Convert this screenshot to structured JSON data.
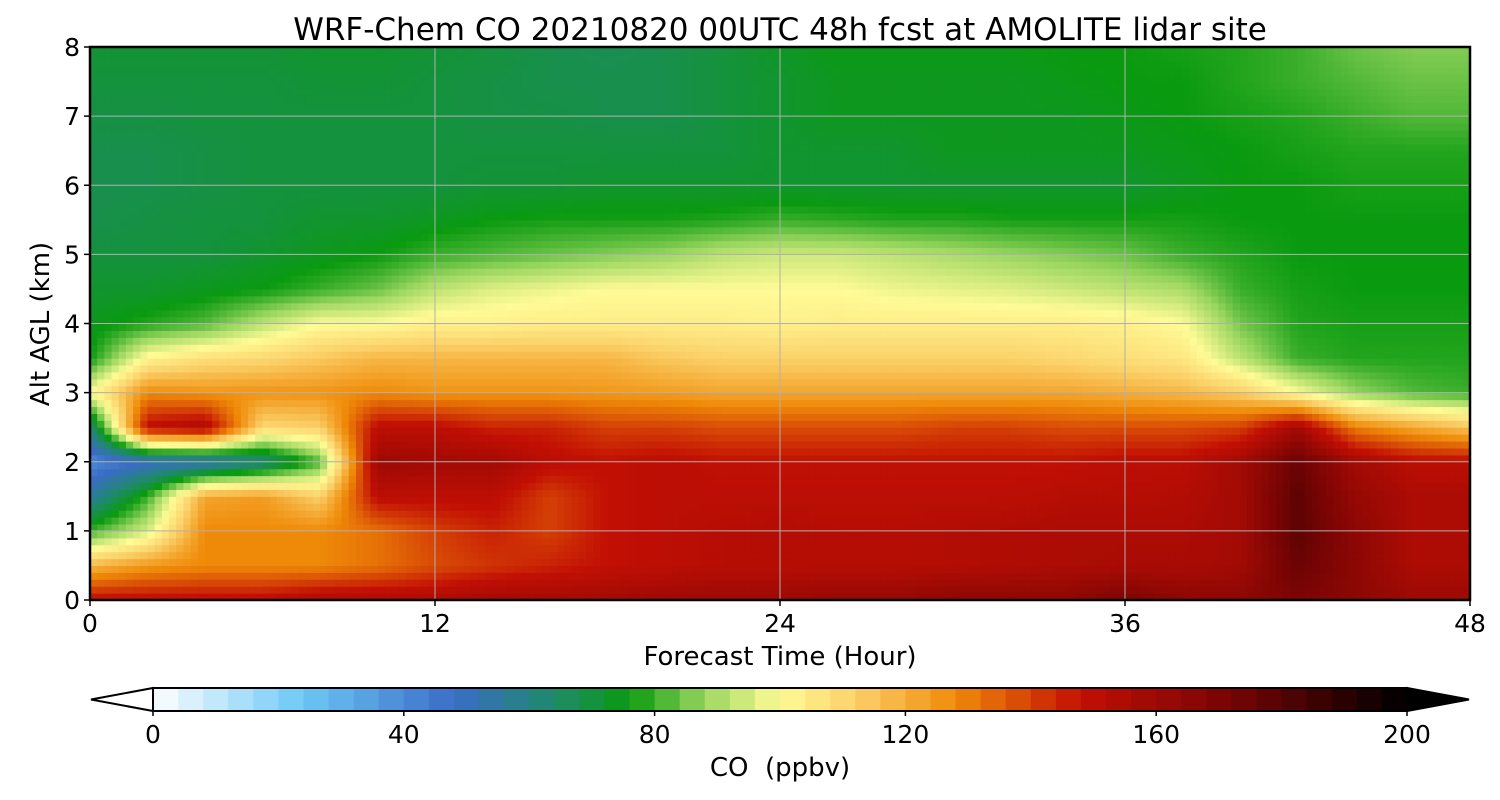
{
  "chart_data": {
    "type": "heatmap",
    "title": "WRF-Chem CO  20210820 00UTC 48h fcst at AMOLITE lidar site",
    "xlabel": "Forecast Time (Hour)",
    "ylabel": "Alt AGL (km)",
    "xlim": [
      0,
      48
    ],
    "ylim": [
      0,
      8
    ],
    "x_ticks": [
      "0",
      "12",
      "24",
      "36",
      "48"
    ],
    "y_ticks": [
      "0",
      "1",
      "2",
      "3",
      "4",
      "5",
      "6",
      "7",
      "8"
    ],
    "grid": true,
    "colorbar": {
      "label": "CO  (ppbv)",
      "range": [
        0,
        200
      ],
      "ticks": [
        "0",
        "40",
        "80",
        "120",
        "160",
        "200"
      ],
      "extend": "both",
      "stops": [
        {
          "value": 0,
          "color": "#ffffff"
        },
        {
          "value": 24,
          "color": "#6cc8f5"
        },
        {
          "value": 48,
          "color": "#3a6cc6"
        },
        {
          "value": 64,
          "color": "#1f8a6a"
        },
        {
          "value": 76,
          "color": "#0a9a10"
        },
        {
          "value": 88,
          "color": "#9ad660"
        },
        {
          "value": 100,
          "color": "#fffb96"
        },
        {
          "value": 112,
          "color": "#fbd16a"
        },
        {
          "value": 128,
          "color": "#ef8a08"
        },
        {
          "value": 148,
          "color": "#c20f04"
        },
        {
          "value": 172,
          "color": "#760404"
        },
        {
          "value": 200,
          "color": "#000000"
        }
      ]
    },
    "time_hours": [
      0,
      2,
      4,
      6,
      8,
      10,
      12,
      14,
      16,
      18,
      20,
      22,
      24,
      26,
      28,
      30,
      32,
      34,
      36,
      38,
      40,
      42,
      44,
      46,
      48
    ],
    "altitude_km": [
      0,
      0.5,
      1,
      1.5,
      2,
      2.5,
      3,
      3.5,
      4,
      4.5,
      5,
      5.5,
      6,
      6.5,
      7,
      7.5,
      8
    ],
    "co_ppbv": [
      [
        150,
        150,
        150,
        150,
        155,
        155,
        155,
        158,
        158,
        158,
        160,
        160,
        160,
        162,
        162,
        165,
        165,
        165,
        170,
        165,
        165,
        170,
        165,
        160,
        160
      ],
      [
        118,
        125,
        128,
        128,
        128,
        132,
        138,
        142,
        145,
        148,
        150,
        152,
        152,
        152,
        152,
        153,
        154,
        155,
        156,
        156,
        158,
        175,
        165,
        155,
        155
      ],
      [
        80,
        95,
        128,
        128,
        128,
        132,
        140,
        145,
        140,
        148,
        150,
        152,
        153,
        152,
        152,
        153,
        154,
        155,
        155,
        155,
        158,
        178,
        165,
        155,
        155
      ],
      [
        55,
        80,
        122,
        124,
        112,
        150,
        150,
        150,
        140,
        148,
        150,
        150,
        150,
        150,
        150,
        150,
        150,
        152,
        152,
        153,
        158,
        178,
        162,
        155,
        155
      ],
      [
        40,
        48,
        50,
        60,
        82,
        160,
        158,
        158,
        150,
        148,
        150,
        148,
        148,
        148,
        148,
        148,
        148,
        148,
        150,
        150,
        158,
        175,
        158,
        150,
        150
      ],
      [
        60,
        150,
        155,
        110,
        112,
        150,
        150,
        145,
        145,
        140,
        140,
        138,
        138,
        138,
        138,
        140,
        140,
        138,
        138,
        138,
        140,
        158,
        130,
        122,
        115
      ],
      [
        100,
        128,
        126,
        126,
        126,
        128,
        126,
        126,
        126,
        125,
        124,
        122,
        122,
        122,
        122,
        122,
        122,
        122,
        120,
        118,
        113,
        100,
        88,
        82,
        80
      ],
      [
        76,
        102,
        108,
        110,
        114,
        118,
        118,
        118,
        118,
        118,
        114,
        112,
        112,
        112,
        112,
        112,
        112,
        110,
        108,
        106,
        92,
        80,
        78,
        78,
        78
      ],
      [
        74,
        78,
        82,
        92,
        100,
        100,
        103,
        103,
        104,
        104,
        104,
        104,
        103,
        104,
        104,
        104,
        104,
        104,
        103,
        100,
        85,
        78,
        77,
        77,
        77
      ],
      [
        72,
        72,
        74,
        76,
        80,
        84,
        92,
        96,
        98,
        100,
        100,
        100,
        100,
        100,
        98,
        97,
        96,
        94,
        92,
        90,
        80,
        77,
        76,
        76,
        76
      ],
      [
        70,
        70,
        70,
        72,
        74,
        76,
        80,
        82,
        84,
        86,
        88,
        92,
        94,
        94,
        92,
        90,
        88,
        86,
        84,
        80,
        78,
        76,
        76,
        76,
        76
      ],
      [
        68,
        69,
        70,
        70,
        72,
        72,
        74,
        76,
        77,
        77,
        77,
        78,
        80,
        79,
        78,
        78,
        77,
        77,
        77,
        77,
        76,
        76,
        76,
        76,
        76
      ],
      [
        68,
        68,
        69,
        70,
        70,
        70,
        70,
        71,
        71,
        72,
        72,
        72,
        72,
        72,
        72,
        72,
        72,
        72,
        72,
        74,
        76,
        76,
        77,
        77,
        77
      ],
      [
        68,
        68,
        69,
        70,
        70,
        70,
        70,
        70,
        70,
        70,
        70,
        70,
        72,
        72,
        72,
        74,
        74,
        74,
        74,
        75,
        76,
        77,
        78,
        78,
        78
      ],
      [
        69,
        69,
        70,
        70,
        70,
        70,
        70,
        69,
        69,
        68,
        68,
        70,
        72,
        74,
        74,
        74,
        74,
        74,
        75,
        76,
        77,
        78,
        80,
        82,
        82
      ],
      [
        70,
        70,
        70,
        70,
        71,
        71,
        70,
        69,
        68,
        68,
        68,
        70,
        72,
        74,
        74,
        74,
        74,
        75,
        76,
        76,
        78,
        80,
        82,
        84,
        84
      ],
      [
        71,
        71,
        71,
        71,
        72,
        72,
        71,
        70,
        68,
        67,
        68,
        70,
        73,
        75,
        75,
        75,
        75,
        76,
        76,
        77,
        78,
        80,
        84,
        86,
        86
      ]
    ]
  }
}
